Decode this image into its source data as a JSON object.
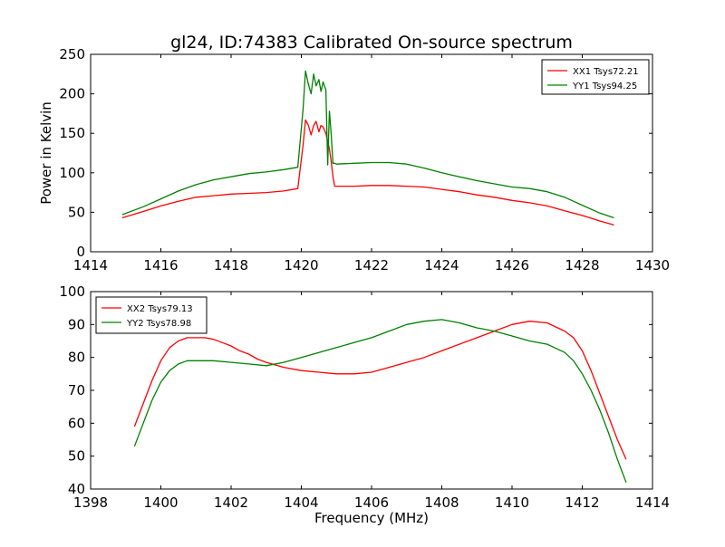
{
  "figure": {
    "title": "gl24, ID:74383 Calibrated On-source spectrum",
    "ylabel": "Power in Kelvin",
    "xlabel": "Frequency (MHz)"
  },
  "colors": {
    "red": "#ff0000",
    "green": "#008000"
  },
  "chart_data": [
    {
      "type": "line",
      "title": "gl24, ID:74383 Calibrated On-source spectrum",
      "ylabel": "Power in Kelvin",
      "xlabel": "",
      "xlim": [
        1414,
        1430
      ],
      "ylim": [
        0,
        250
      ],
      "xticks": [
        1414,
        1416,
        1418,
        1420,
        1422,
        1424,
        1426,
        1428,
        1430
      ],
      "yticks": [
        0,
        50,
        100,
        150,
        200,
        250
      ],
      "grid": false,
      "legend": "top-right",
      "series": [
        {
          "name": "XX1 Tsys72.21",
          "color": "#ff0000",
          "points": [
            [
              1414.9,
              43
            ],
            [
              1415.5,
              51
            ],
            [
              1416.0,
              58
            ],
            [
              1416.5,
              64
            ],
            [
              1417.0,
              69
            ],
            [
              1417.5,
              71
            ],
            [
              1418.0,
              73
            ],
            [
              1418.5,
              74
            ],
            [
              1419.0,
              75
            ],
            [
              1419.5,
              77
            ],
            [
              1419.9,
              80
            ],
            [
              1420.05,
              135
            ],
            [
              1420.12,
              167
            ],
            [
              1420.2,
              160
            ],
            [
              1420.28,
              148
            ],
            [
              1420.35,
              160
            ],
            [
              1420.42,
              165
            ],
            [
              1420.5,
              152
            ],
            [
              1420.56,
              160
            ],
            [
              1420.62,
              158
            ],
            [
              1420.7,
              150
            ],
            [
              1420.75,
              140
            ],
            [
              1420.8,
              130
            ],
            [
              1420.85,
              115
            ],
            [
              1420.9,
              95
            ],
            [
              1420.95,
              83
            ],
            [
              1421.0,
              83
            ],
            [
              1421.5,
              83
            ],
            [
              1422.0,
              84
            ],
            [
              1422.5,
              84
            ],
            [
              1423.0,
              83
            ],
            [
              1423.5,
              82
            ],
            [
              1424.0,
              79
            ],
            [
              1424.5,
              76
            ],
            [
              1425.0,
              72
            ],
            [
              1425.5,
              69
            ],
            [
              1426.0,
              65
            ],
            [
              1426.5,
              62
            ],
            [
              1427.0,
              58
            ],
            [
              1427.5,
              52
            ],
            [
              1428.0,
              46
            ],
            [
              1428.5,
              39
            ],
            [
              1428.9,
              34
            ]
          ]
        },
        {
          "name": "YY1 Tsys94.25",
          "color": "#008000",
          "points": [
            [
              1414.9,
              47
            ],
            [
              1415.5,
              57
            ],
            [
              1416.0,
              67
            ],
            [
              1416.5,
              77
            ],
            [
              1417.0,
              85
            ],
            [
              1417.5,
              91
            ],
            [
              1418.0,
              95
            ],
            [
              1418.5,
              99
            ],
            [
              1419.0,
              101
            ],
            [
              1419.5,
              104
            ],
            [
              1419.9,
              107
            ],
            [
              1420.05,
              180
            ],
            [
              1420.12,
              229
            ],
            [
              1420.2,
              212
            ],
            [
              1420.28,
              200
            ],
            [
              1420.35,
              225
            ],
            [
              1420.42,
              210
            ],
            [
              1420.5,
              218
            ],
            [
              1420.56,
              203
            ],
            [
              1420.62,
              215
            ],
            [
              1420.7,
              205
            ],
            [
              1420.75,
              110
            ],
            [
              1420.8,
              178
            ],
            [
              1420.85,
              150
            ],
            [
              1420.9,
              112
            ],
            [
              1420.95,
              112
            ],
            [
              1421.0,
              111
            ],
            [
              1421.5,
              112
            ],
            [
              1422.0,
              113
            ],
            [
              1422.5,
              113
            ],
            [
              1423.0,
              111
            ],
            [
              1423.5,
              106
            ],
            [
              1424.0,
              100
            ],
            [
              1424.5,
              95
            ],
            [
              1425.0,
              90
            ],
            [
              1425.5,
              86
            ],
            [
              1426.0,
              82
            ],
            [
              1426.5,
              80
            ],
            [
              1427.0,
              76
            ],
            [
              1427.5,
              69
            ],
            [
              1428.0,
              59
            ],
            [
              1428.5,
              49
            ],
            [
              1428.9,
              43
            ]
          ]
        }
      ]
    },
    {
      "type": "line",
      "title": "",
      "xlabel": "Frequency (MHz)",
      "ylabel": "",
      "xlim": [
        1398,
        1414
      ],
      "ylim": [
        40,
        100
      ],
      "xticks": [
        1398,
        1400,
        1402,
        1404,
        1406,
        1408,
        1410,
        1412,
        1414
      ],
      "yticks": [
        40,
        50,
        60,
        70,
        80,
        90,
        100
      ],
      "grid": false,
      "legend": "top-left",
      "series": [
        {
          "name": "XX2 Tsys79.13",
          "color": "#ff0000",
          "points": [
            [
              1399.25,
              59
            ],
            [
              1399.5,
              66
            ],
            [
              1399.75,
              73
            ],
            [
              1400.0,
              79
            ],
            [
              1400.25,
              83
            ],
            [
              1400.5,
              85
            ],
            [
              1400.75,
              86
            ],
            [
              1401.0,
              86
            ],
            [
              1401.25,
              86
            ],
            [
              1401.5,
              85.5
            ],
            [
              1401.75,
              84.5
            ],
            [
              1402.0,
              83.5
            ],
            [
              1402.25,
              82
            ],
            [
              1402.5,
              81
            ],
            [
              1402.75,
              79.5
            ],
            [
              1403.0,
              78.5
            ],
            [
              1403.5,
              77
            ],
            [
              1404.0,
              76
            ],
            [
              1404.5,
              75.5
            ],
            [
              1405.0,
              75
            ],
            [
              1405.5,
              75
            ],
            [
              1406.0,
              75.5
            ],
            [
              1406.5,
              77
            ],
            [
              1407.0,
              78.5
            ],
            [
              1407.5,
              80
            ],
            [
              1408.0,
              82
            ],
            [
              1408.5,
              84
            ],
            [
              1409.0,
              86
            ],
            [
              1409.5,
              88
            ],
            [
              1410.0,
              90
            ],
            [
              1410.5,
              91
            ],
            [
              1411.0,
              90.5
            ],
            [
              1411.5,
              88
            ],
            [
              1411.75,
              86
            ],
            [
              1412.0,
              82
            ],
            [
              1412.25,
              76
            ],
            [
              1412.5,
              69
            ],
            [
              1412.75,
              62
            ],
            [
              1413.0,
              55
            ],
            [
              1413.25,
              49
            ]
          ]
        },
        {
          "name": "YY2 Tsys78.98",
          "color": "#008000",
          "points": [
            [
              1399.25,
              53
            ],
            [
              1399.5,
              60
            ],
            [
              1399.75,
              67
            ],
            [
              1400.0,
              72.5
            ],
            [
              1400.25,
              76
            ],
            [
              1400.5,
              78
            ],
            [
              1400.75,
              79
            ],
            [
              1401.0,
              79
            ],
            [
              1401.5,
              79
            ],
            [
              1402.0,
              78.5
            ],
            [
              1402.5,
              78
            ],
            [
              1403.0,
              77.5
            ],
            [
              1403.5,
              78.5
            ],
            [
              1404.0,
              80
            ],
            [
              1404.5,
              81.5
            ],
            [
              1405.0,
              83
            ],
            [
              1405.5,
              84.5
            ],
            [
              1406.0,
              86
            ],
            [
              1406.5,
              88
            ],
            [
              1407.0,
              90
            ],
            [
              1407.5,
              91
            ],
            [
              1408.0,
              91.5
            ],
            [
              1408.5,
              90.5
            ],
            [
              1409.0,
              89
            ],
            [
              1409.5,
              88
            ],
            [
              1410.0,
              86.5
            ],
            [
              1410.5,
              85
            ],
            [
              1411.0,
              84
            ],
            [
              1411.5,
              81.5
            ],
            [
              1411.75,
              79
            ],
            [
              1412.0,
              75
            ],
            [
              1412.25,
              70
            ],
            [
              1412.5,
              64
            ],
            [
              1412.75,
              57
            ],
            [
              1413.0,
              49
            ],
            [
              1413.25,
              42
            ]
          ]
        }
      ]
    }
  ]
}
